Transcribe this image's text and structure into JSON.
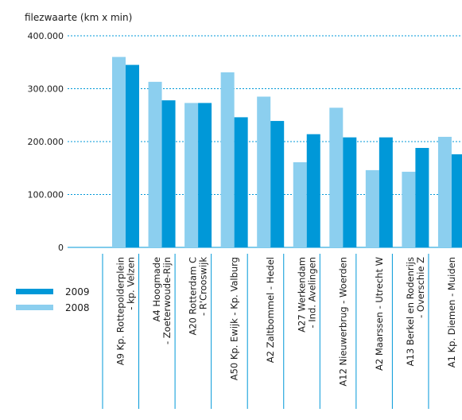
{
  "chart_data": {
    "type": "bar",
    "ylabel": "filezwaarte (km x min)",
    "ylim": [
      0,
      400000
    ],
    "yticks": [
      0,
      100000,
      200000,
      300000,
      400000
    ],
    "ytick_labels": [
      "0",
      "100.000",
      "200.000",
      "300.000",
      "400.000"
    ],
    "grid": true,
    "legend_position": "left",
    "categories": [
      [
        "A9 Kp. Rottepolderplein",
        "- kp. Velzen"
      ],
      [
        "A4 Hoogmade",
        "- Zoeterwoude-Rijn"
      ],
      [
        "A20 Rotterdam C",
        "- R'Crooswijk"
      ],
      [
        "A50 Kp. Ewijk - Kp. Valburg"
      ],
      [
        "A2 Zaltbommel - Hedel"
      ],
      [
        "A27 Werkendam",
        "- Ind. Avelingen"
      ],
      [
        "A12 Nieuwerbrug - Woerden"
      ],
      [
        "A2 Maarssen - Utrecht W"
      ],
      [
        "A13 Berkel en Rodenrijs",
        "- Overschie Z"
      ],
      [
        "A1 Kp. Diemen - Muiden"
      ]
    ],
    "series": [
      {
        "name": "2008",
        "color": "#8ccfef",
        "values": [
          360000,
          313000,
          273000,
          331000,
          285000,
          161000,
          264000,
          146000,
          143000,
          209000
        ]
      },
      {
        "name": "2009",
        "color": "#0098d8",
        "values": [
          345000,
          278000,
          273000,
          246000,
          239000,
          214000,
          208000,
          208000,
          188000,
          176000
        ]
      }
    ],
    "legend_order": [
      "2009",
      "2008"
    ]
  }
}
